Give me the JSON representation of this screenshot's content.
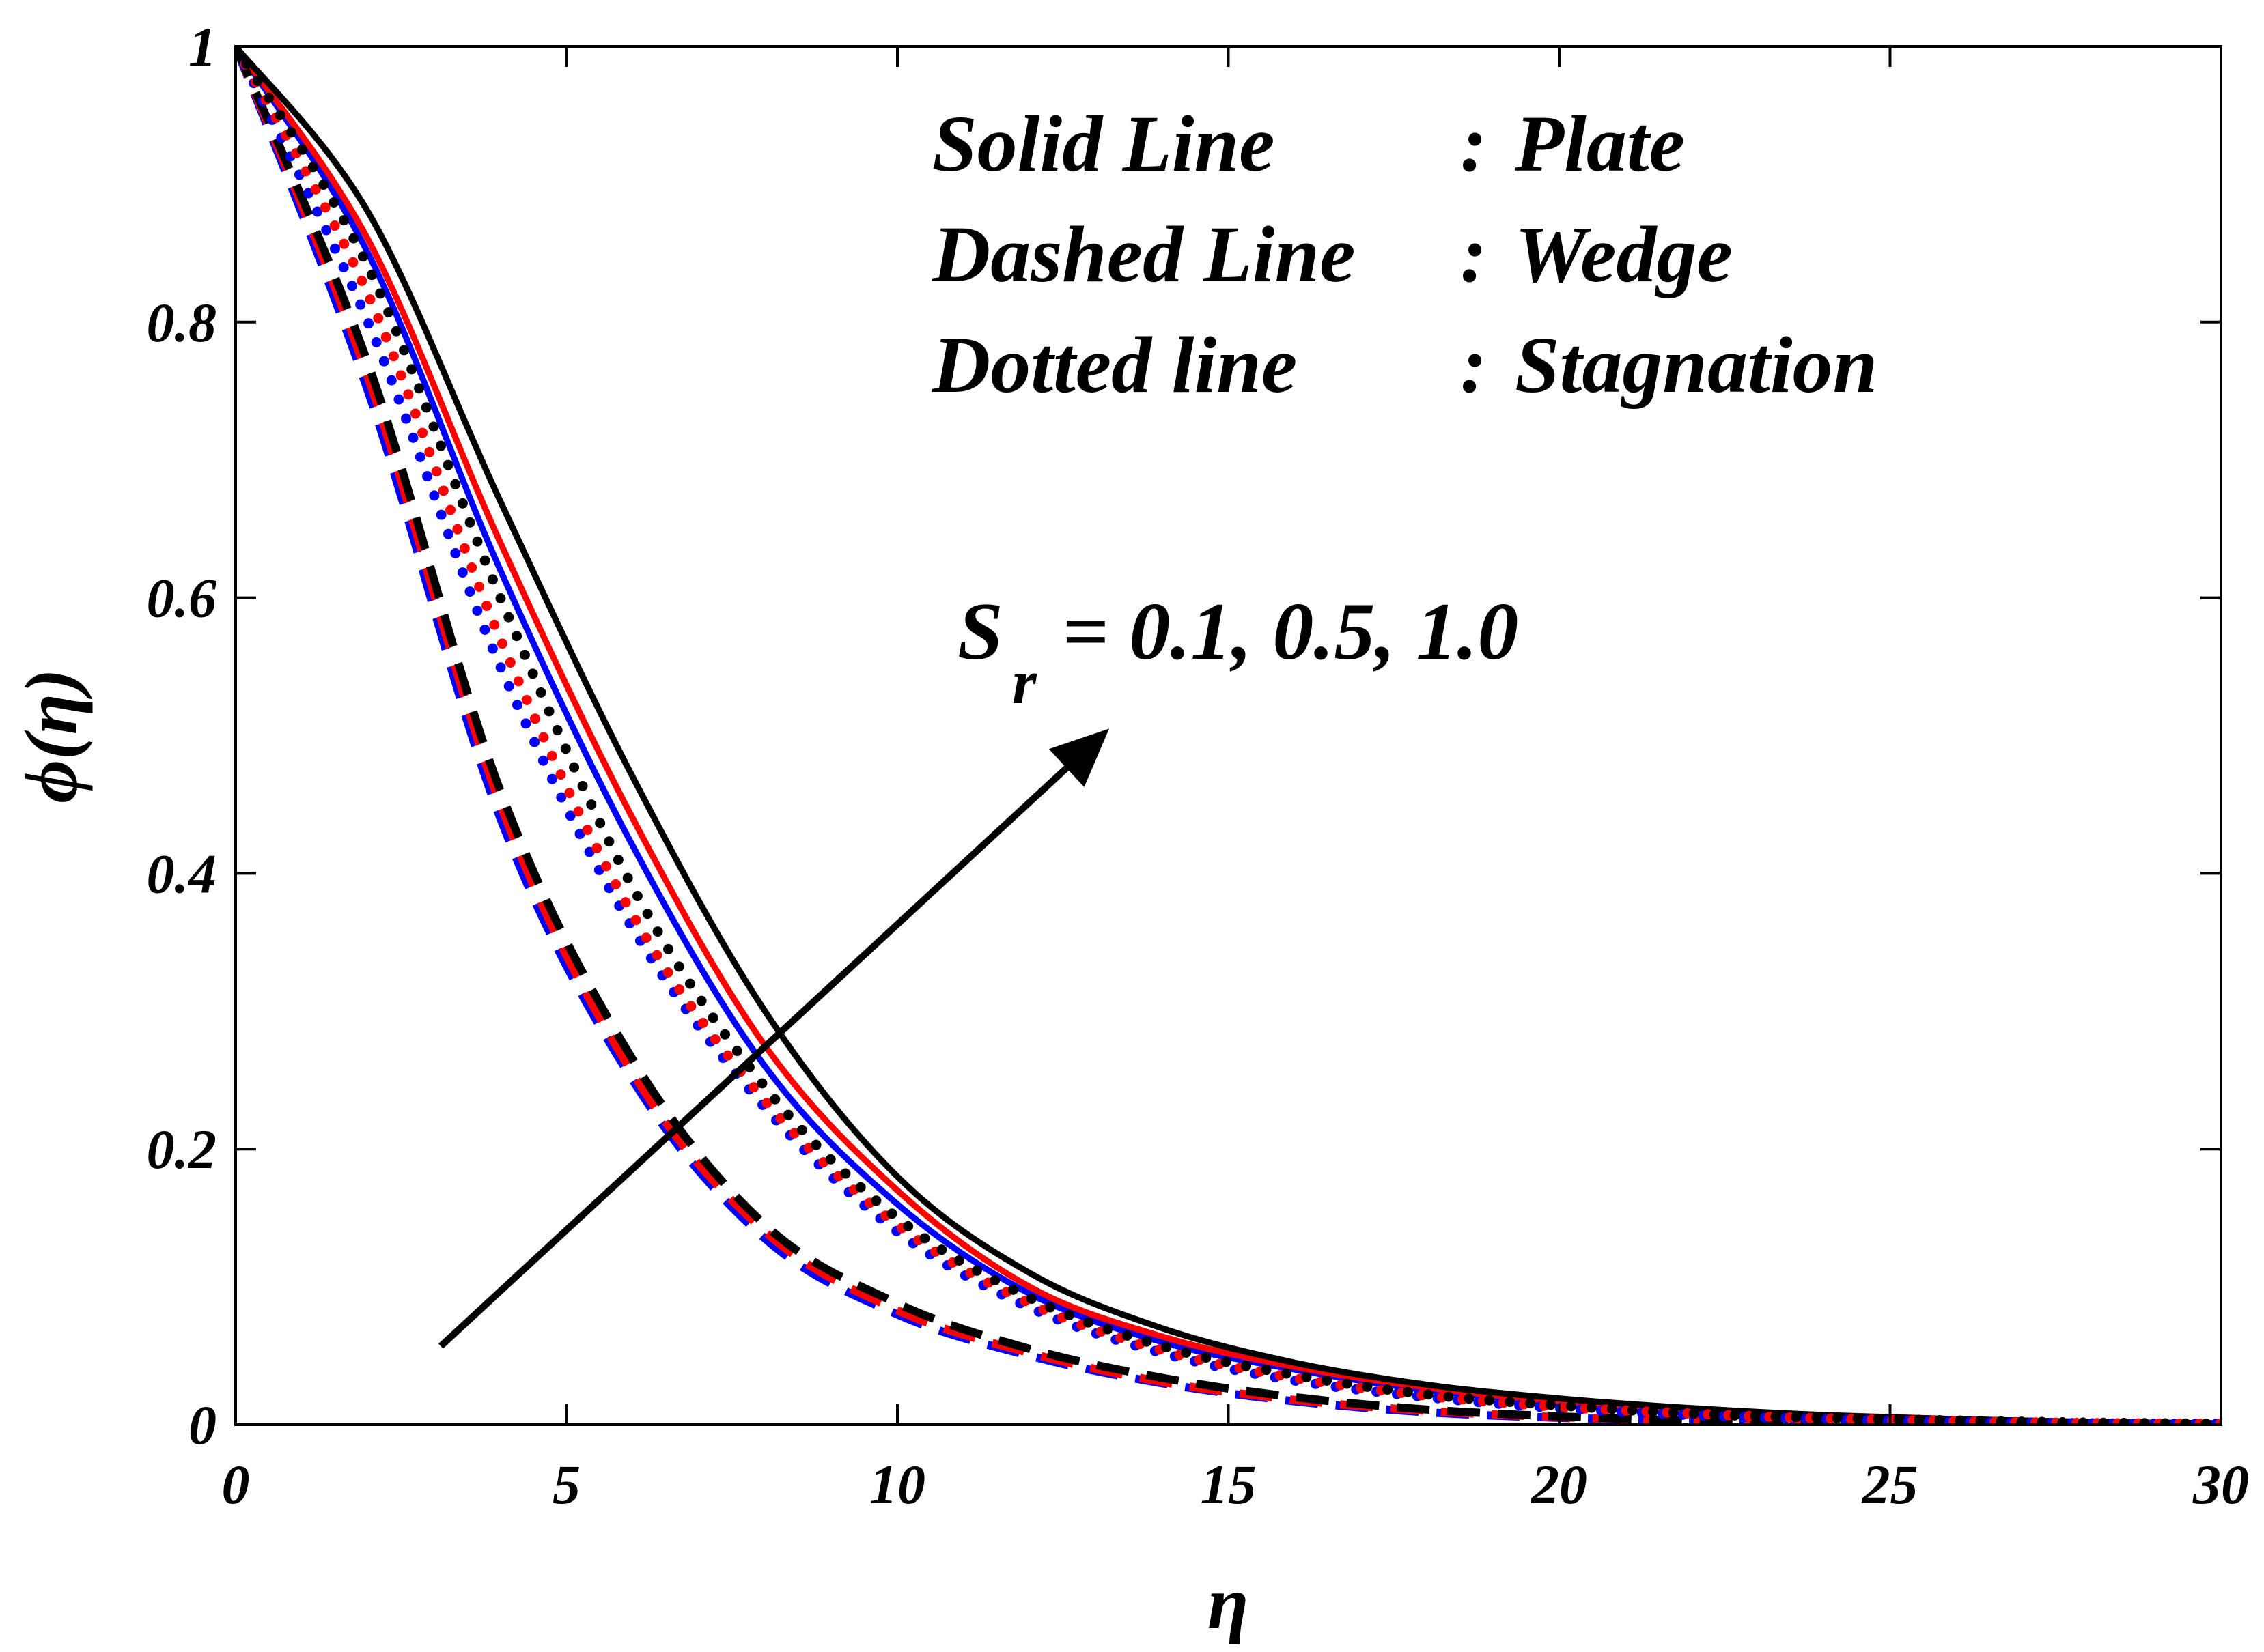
{
  "chart_data": {
    "type": "line",
    "xlabel": "η",
    "ylabel": "ϕ(η)",
    "xlim": [
      0,
      30
    ],
    "ylim": [
      0,
      1
    ],
    "xticks": [
      0,
      5,
      10,
      15,
      20,
      25,
      30
    ],
    "yticks": [
      0,
      0.2,
      0.4,
      0.6,
      0.8,
      1
    ],
    "xtick_labels": [
      "0",
      "5",
      "10",
      "15",
      "20",
      "25",
      "30"
    ],
    "ytick_labels": [
      "0",
      "0.2",
      "0.4",
      "0.6",
      "0.8",
      "1"
    ],
    "grid": false,
    "colors": {
      "Sr=0.1": "#0000ff",
      "Sr=0.5": "#ff0000",
      "Sr=1.0": "#000000"
    },
    "series": [
      {
        "style": "solid",
        "color": "#0000ff",
        "x": [
          0,
          2,
          4,
          6,
          8,
          10,
          12,
          14,
          16,
          18,
          20,
          22,
          24,
          26,
          28,
          30
        ],
        "y": [
          1.0,
          0.85,
          0.62,
          0.42,
          0.26,
          0.16,
          0.095,
          0.06,
          0.04,
          0.025,
          0.016,
          0.01,
          0.006,
          0.004,
          0.002,
          0.001
        ]
      },
      {
        "style": "solid",
        "color": "#ff0000",
        "x": [
          0,
          2,
          4,
          6,
          8,
          10,
          12,
          14,
          16,
          18,
          20,
          22,
          24,
          26,
          28,
          30
        ],
        "y": [
          1.0,
          0.86,
          0.64,
          0.44,
          0.275,
          0.17,
          0.1,
          0.064,
          0.042,
          0.027,
          0.017,
          0.011,
          0.007,
          0.004,
          0.002,
          0.001
        ]
      },
      {
        "style": "solid",
        "color": "#000000",
        "x": [
          0,
          2,
          4,
          6,
          8,
          10,
          12,
          14,
          16,
          18,
          20,
          22,
          24,
          26,
          28,
          30
        ],
        "y": [
          1.0,
          0.88,
          0.67,
          0.47,
          0.3,
          0.18,
          0.11,
          0.07,
          0.045,
          0.029,
          0.019,
          0.012,
          0.007,
          0.004,
          0.002,
          0.001
        ]
      },
      {
        "style": "dashed",
        "color": "#0000ff",
        "x": [
          0,
          2,
          4,
          6,
          8,
          10,
          12,
          14,
          16,
          18,
          20,
          22,
          24,
          26,
          28,
          30
        ],
        "y": [
          1.0,
          0.75,
          0.44,
          0.25,
          0.135,
          0.08,
          0.05,
          0.03,
          0.017,
          0.009,
          0.005,
          0.003,
          0.002,
          0.001,
          0.0005,
          0.0002
        ]
      },
      {
        "style": "dashed",
        "color": "#ff0000",
        "x": [
          0,
          2,
          4,
          6,
          8,
          10,
          12,
          14,
          16,
          18,
          20,
          22,
          24,
          26,
          28,
          30
        ],
        "y": [
          1.0,
          0.76,
          0.45,
          0.255,
          0.14,
          0.083,
          0.052,
          0.031,
          0.018,
          0.01,
          0.0055,
          0.003,
          0.002,
          0.001,
          0.0005,
          0.0002
        ]
      },
      {
        "style": "dashed",
        "color": "#000000",
        "x": [
          0,
          2,
          4,
          6,
          8,
          10,
          12,
          14,
          16,
          18,
          20,
          22,
          24,
          26,
          28,
          30
        ],
        "y": [
          1.0,
          0.77,
          0.46,
          0.265,
          0.145,
          0.088,
          0.055,
          0.034,
          0.02,
          0.011,
          0.006,
          0.003,
          0.002,
          0.001,
          0.0005,
          0.0002
        ]
      },
      {
        "style": "dotted",
        "color": "#0000ff",
        "x": [
          0,
          2,
          4,
          6,
          8,
          10,
          12,
          14,
          16,
          18,
          20,
          22,
          24,
          26,
          28,
          30
        ],
        "y": [
          1.0,
          0.8,
          0.55,
          0.36,
          0.23,
          0.14,
          0.085,
          0.052,
          0.032,
          0.02,
          0.012,
          0.007,
          0.004,
          0.002,
          0.001,
          0.0005
        ]
      },
      {
        "style": "dotted",
        "color": "#ff0000",
        "x": [
          0,
          2,
          4,
          6,
          8,
          10,
          12,
          14,
          16,
          18,
          20,
          22,
          24,
          26,
          28,
          30
        ],
        "y": [
          1.0,
          0.82,
          0.57,
          0.37,
          0.235,
          0.145,
          0.088,
          0.054,
          0.034,
          0.021,
          0.013,
          0.008,
          0.0045,
          0.0025,
          0.0012,
          0.0006
        ]
      },
      {
        "style": "dotted",
        "color": "#000000",
        "x": [
          0,
          2,
          4,
          6,
          8,
          10,
          12,
          14,
          16,
          18,
          20,
          22,
          24,
          26,
          28,
          30
        ],
        "y": [
          1.0,
          0.84,
          0.6,
          0.39,
          0.245,
          0.15,
          0.092,
          0.057,
          0.036,
          0.022,
          0.014,
          0.008,
          0.005,
          0.003,
          0.0015,
          0.0007
        ]
      }
    ],
    "legend_lines": [
      {
        "key": "Solid Line",
        "sep": ":",
        "value": "Plate"
      },
      {
        "key": "Dashed Line",
        "sep": ":",
        "value": "Wedge"
      },
      {
        "key": "Dotted line",
        "sep": ":",
        "value": "Stagnation"
      }
    ],
    "annotation": {
      "symbol": "S",
      "subscript": "r",
      "text": "= 0.1, 0.5, 1.0",
      "arrow_from": [
        3.1,
        0.057
      ],
      "arrow_to": [
        13.2,
        0.505
      ]
    }
  }
}
